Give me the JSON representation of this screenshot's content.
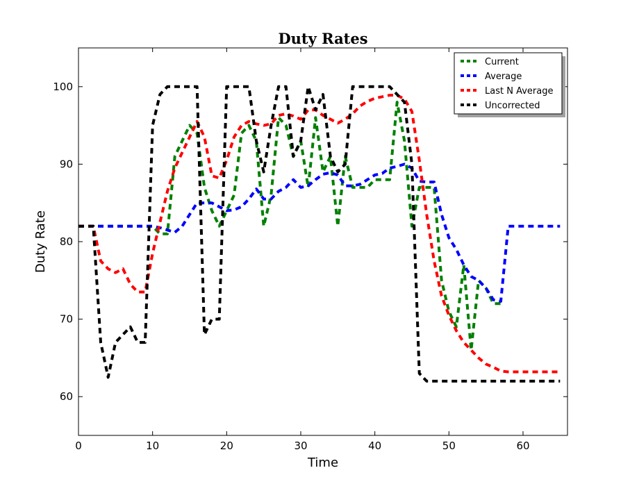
{
  "chart_data": {
    "type": "line",
    "title": "Duty Rates",
    "xlabel": "Time",
    "ylabel": "Duty Rate",
    "xlim": [
      0,
      66
    ],
    "ylim": [
      55,
      105
    ],
    "xticks": [
      0,
      10,
      20,
      30,
      40,
      50,
      60
    ],
    "yticks": [
      60,
      70,
      80,
      90,
      100
    ],
    "grid": false,
    "legend_position": "top-right",
    "series": [
      {
        "name": "Current",
        "color": "#008000",
        "x": [
          0,
          1,
          2,
          3,
          4,
          5,
          6,
          7,
          8,
          9,
          10,
          11,
          12,
          13,
          14,
          15,
          16,
          17,
          18,
          19,
          20,
          21,
          22,
          23,
          24,
          25,
          26,
          27,
          28,
          29,
          30,
          31,
          32,
          33,
          34,
          35,
          36,
          37,
          38,
          39,
          40,
          41,
          42,
          43,
          44,
          45,
          46,
          47,
          48,
          49,
          50,
          51,
          52,
          53,
          54,
          55,
          56,
          57
        ],
        "y": [
          82,
          82,
          82,
          82,
          82,
          82,
          82,
          82,
          82,
          82,
          82,
          81,
          81,
          91,
          93,
          95,
          94,
          87,
          84,
          82,
          84,
          86,
          94,
          95,
          93,
          82,
          86,
          96,
          95,
          91,
          93,
          87,
          96,
          89,
          91,
          82,
          91,
          87,
          87,
          87,
          88,
          88,
          88,
          98,
          93,
          82,
          87,
          87,
          87,
          75,
          71,
          69,
          77,
          66,
          75,
          74,
          72,
          72
        ]
      },
      {
        "name": "Average",
        "color": "#0000ff",
        "x": [
          0,
          2,
          5,
          8,
          10,
          11,
          12,
          13,
          14,
          15,
          16,
          17,
          18,
          19,
          20,
          21,
          22,
          23,
          24,
          25,
          26,
          27,
          28,
          29,
          30,
          31,
          32,
          33,
          34,
          35,
          36,
          37,
          38,
          39,
          40,
          41,
          42,
          43,
          44,
          45,
          46,
          47,
          48,
          49,
          50,
          51,
          52,
          53,
          54,
          55,
          56,
          57,
          58,
          59,
          60,
          61,
          62,
          63,
          64,
          65
        ],
        "y": [
          82,
          82,
          82,
          82,
          82,
          81.8,
          81.5,
          81.2,
          82,
          83.5,
          85,
          85,
          85,
          84.5,
          84,
          84.1,
          84.5,
          85.5,
          86.8,
          85.5,
          85.5,
          86.5,
          87,
          88,
          87,
          87.2,
          88,
          88.7,
          88.9,
          88.6,
          87.2,
          87.2,
          87.4,
          88,
          88.6,
          88.8,
          89.5,
          89.7,
          90,
          89.5,
          87.8,
          87.7,
          87.7,
          83.5,
          80.5,
          79,
          77,
          75.5,
          75,
          74,
          72.5,
          72.3,
          82,
          82,
          82,
          82,
          82,
          82,
          82,
          82
        ]
      },
      {
        "name": "Last N Average",
        "color": "#ff0000",
        "x": [
          0,
          1,
          2,
          3,
          4,
          5,
          6,
          7,
          8,
          9,
          10,
          11,
          12,
          13,
          14,
          15,
          16,
          17,
          18,
          19,
          20,
          21,
          22,
          23,
          24,
          25,
          26,
          27,
          28,
          29,
          30,
          31,
          32,
          33,
          34,
          35,
          36,
          37,
          38,
          39,
          40,
          41,
          42,
          43,
          44,
          45,
          46,
          47,
          48,
          49,
          50,
          51,
          52,
          53,
          54,
          55,
          56,
          57,
          58,
          59,
          60,
          61,
          62,
          63,
          64,
          65
        ],
        "y": [
          82,
          82,
          82,
          77.5,
          76.5,
          76,
          76.5,
          74.5,
          73.5,
          73.5,
          78.5,
          82.5,
          86.5,
          89.5,
          91.5,
          93.5,
          95.5,
          93.5,
          88.5,
          88.2,
          90.5,
          93.5,
          95,
          95.5,
          95.2,
          95,
          95.2,
          96.3,
          96.5,
          96.2,
          95.8,
          97,
          97,
          96.3,
          95.8,
          95.3,
          95.8,
          96.5,
          97.5,
          98.1,
          98.5,
          98.7,
          98.9,
          98.9,
          98.4,
          96.8,
          90.5,
          83.5,
          77.5,
          73,
          70.5,
          68.5,
          67,
          66,
          65,
          64.2,
          63.8,
          63.3,
          63.2,
          63.2,
          63.2,
          63.2,
          63.2,
          63.2,
          63.2,
          63.2
        ]
      },
      {
        "name": "Uncorrected",
        "color": "#000000",
        "x": [
          0,
          1,
          2,
          3,
          4,
          5,
          6,
          7,
          8,
          9,
          10,
          11,
          12,
          13,
          14,
          15,
          16,
          17,
          18,
          19,
          20,
          21,
          22,
          23,
          24,
          25,
          26,
          27,
          28,
          29,
          30,
          31,
          32,
          33,
          34,
          35,
          36,
          37,
          38,
          39,
          40,
          41,
          42,
          43,
          44,
          45,
          46,
          47,
          48,
          49,
          50,
          51,
          52,
          53,
          54,
          55,
          56,
          57,
          58,
          59,
          60,
          61,
          62,
          63,
          64,
          65
        ],
        "y": [
          82,
          82,
          82,
          67,
          62.5,
          67,
          68,
          69,
          67,
          67,
          95,
          99,
          100,
          100,
          100,
          100,
          100,
          68,
          70,
          70,
          100,
          100,
          100,
          100,
          93,
          89,
          95,
          100,
          100,
          91,
          93,
          100,
          97,
          99,
          91,
          89,
          90,
          100,
          100,
          100,
          100,
          100,
          100,
          99,
          98,
          90,
          63,
          62,
          62,
          62,
          62,
          62,
          62,
          62,
          62,
          62,
          62,
          62,
          62,
          62,
          62,
          62,
          62,
          62,
          62,
          62
        ]
      }
    ]
  }
}
